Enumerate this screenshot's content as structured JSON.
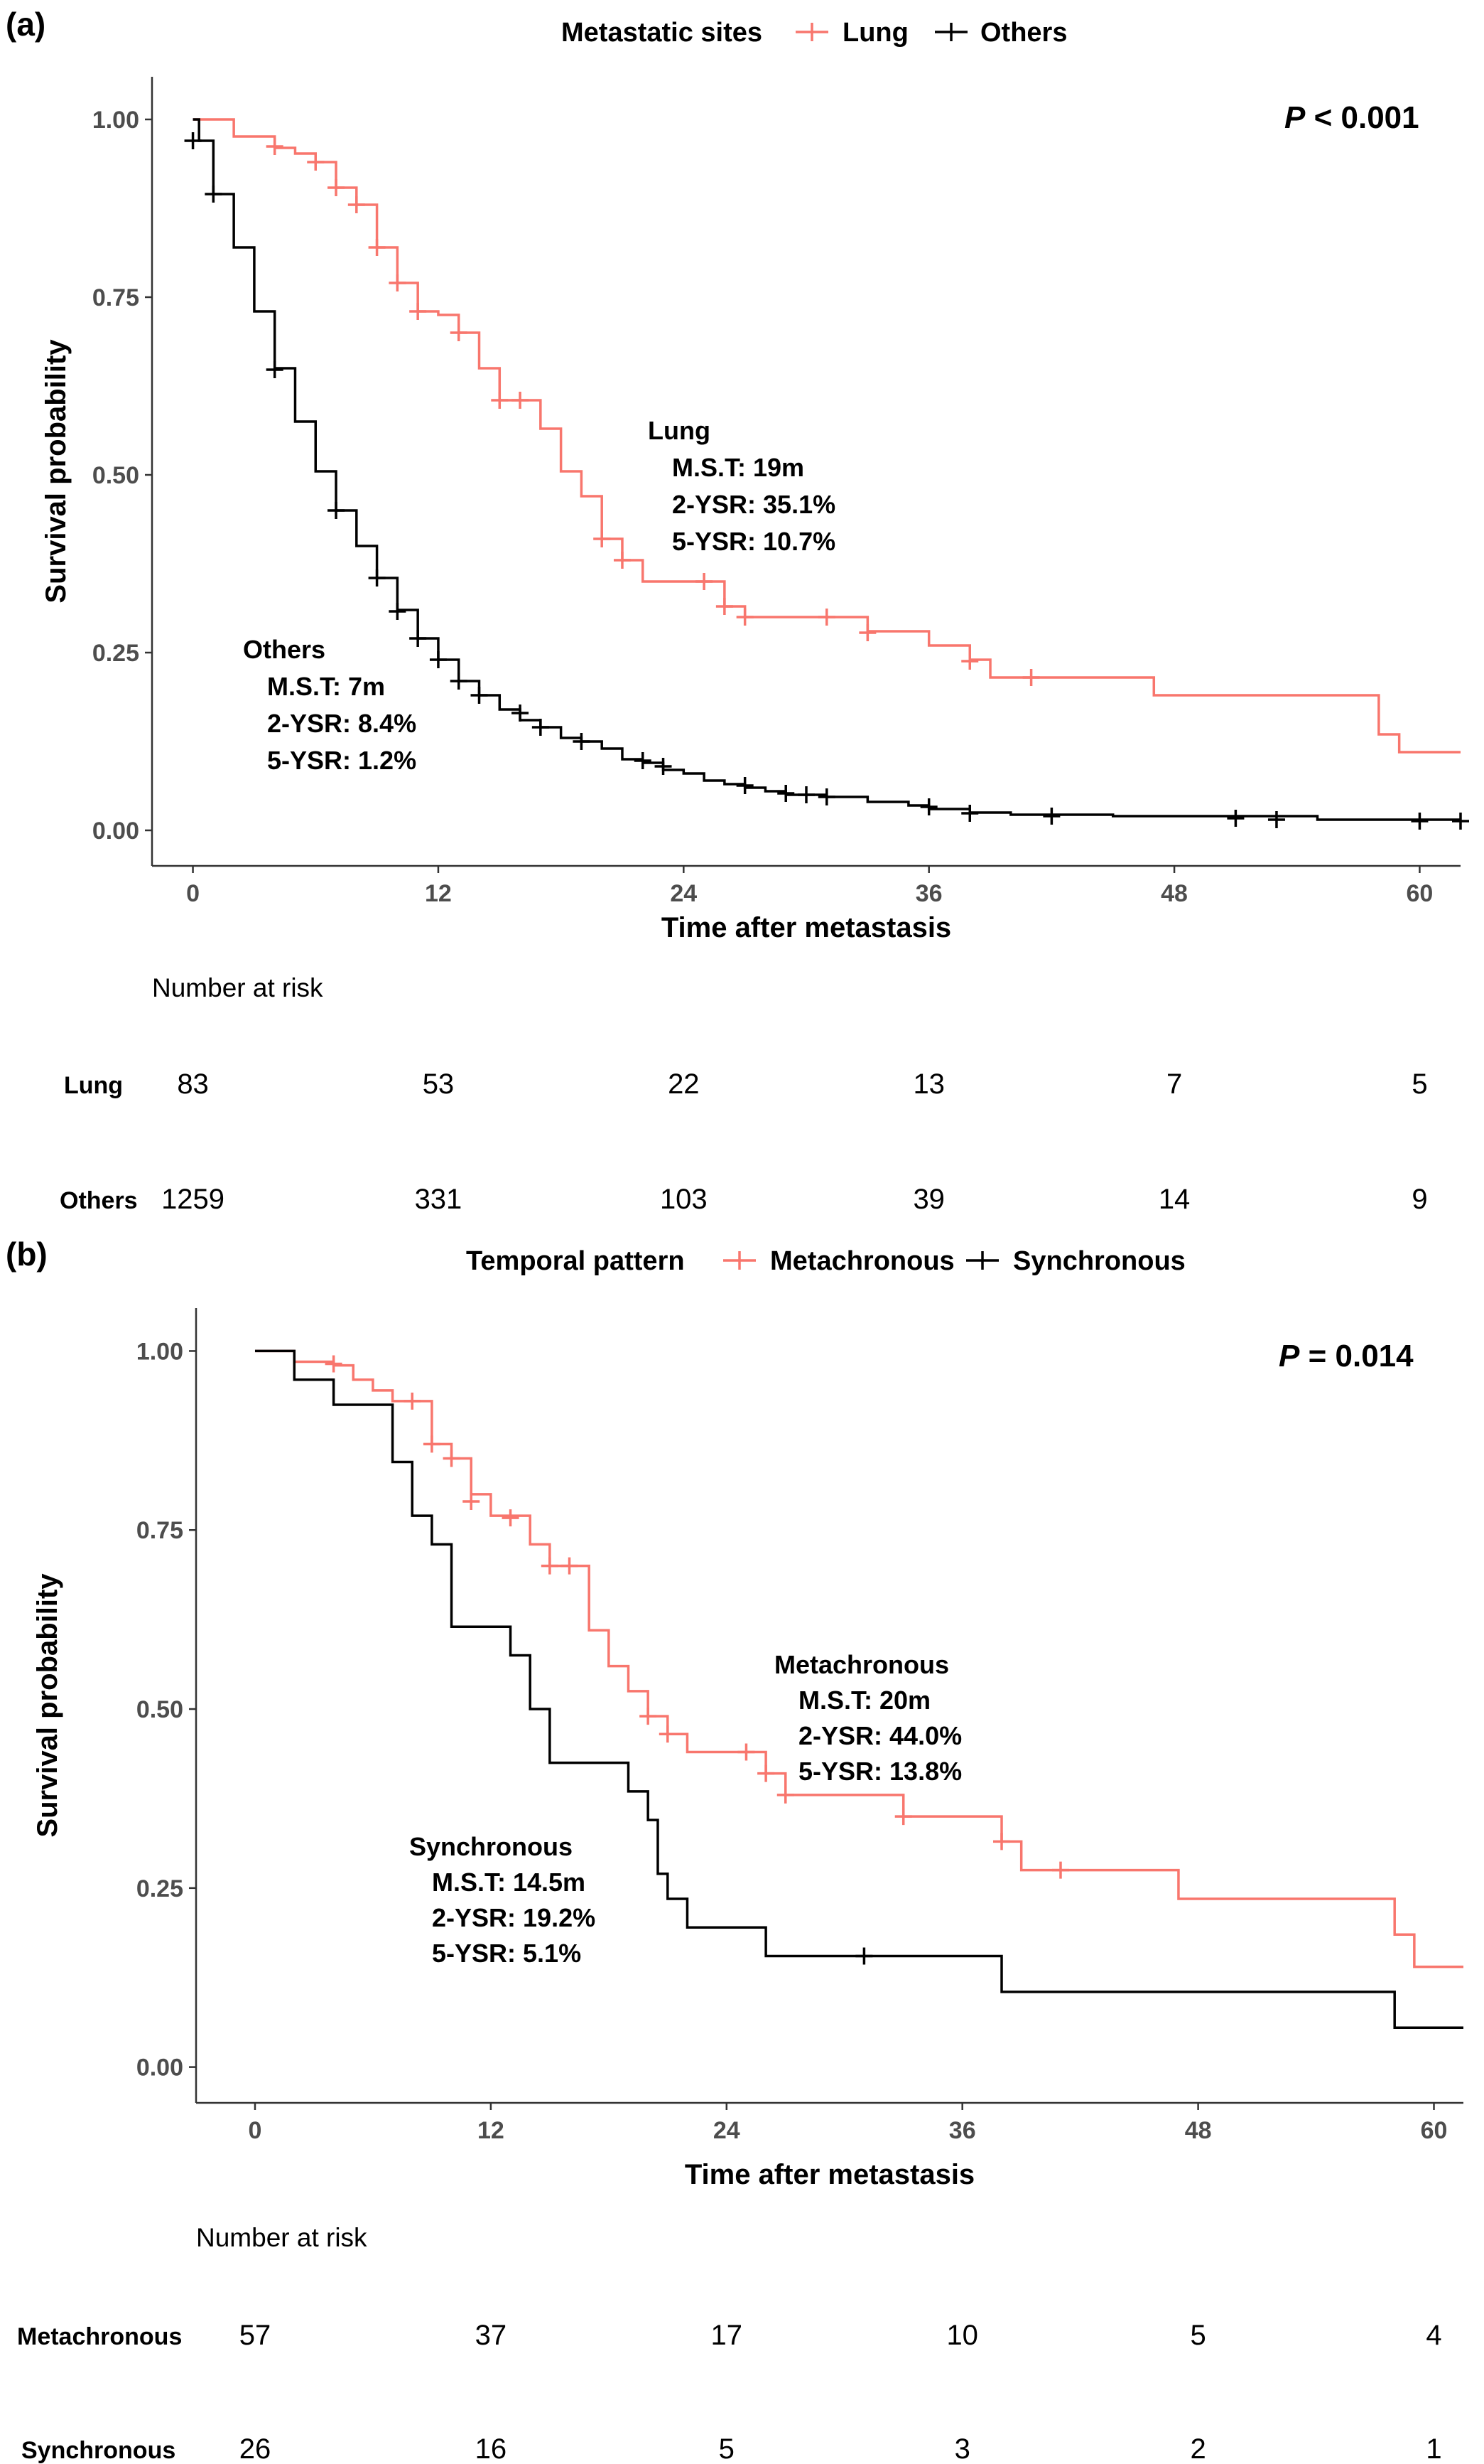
{
  "colors": {
    "lung": "#F8766D",
    "black": "#000000",
    "axis": "#333333",
    "tick_label": "#4D4D4D"
  },
  "chart_data": [
    {
      "type": "line",
      "panel_label": "(a)",
      "legend": {
        "title": "Metastatic sites",
        "entries": [
          "Lung",
          "Others"
        ],
        "placement": "top"
      },
      "p_value": {
        "prefix": "P",
        "rest": " < 0.001"
      },
      "xlabel": "Time after metastasis",
      "ylabel": "Survival probability",
      "xlim": [
        -2,
        62
      ],
      "ylim": [
        -0.05,
        1.06
      ],
      "x_ticks": [
        0,
        12,
        24,
        36,
        48,
        60
      ],
      "x_tick_labels": [
        "0",
        "12",
        "24",
        "36",
        "48",
        "60"
      ],
      "y_ticks": [
        0,
        0.25,
        0.5,
        0.75,
        1
      ],
      "y_tick_labels": [
        "0.00",
        "0.25",
        "0.50",
        "0.75",
        "1.00"
      ],
      "series": [
        {
          "name": "Lung",
          "color_key": "lung",
          "steps": [
            [
              0,
              1.0
            ],
            [
              2,
              0.976
            ],
            [
              4,
              0.96
            ],
            [
              5,
              0.952
            ],
            [
              6,
              0.94
            ],
            [
              7,
              0.904
            ],
            [
              8,
              0.88
            ],
            [
              9,
              0.82
            ],
            [
              10,
              0.77
            ],
            [
              11,
              0.73
            ],
            [
              12,
              0.725
            ],
            [
              13,
              0.7
            ],
            [
              14,
              0.65
            ],
            [
              15,
              0.605
            ],
            [
              16,
              0.605
            ],
            [
              17,
              0.565
            ],
            [
              18,
              0.505
            ],
            [
              19,
              0.47
            ],
            [
              20,
              0.41
            ],
            [
              21,
              0.38
            ],
            [
              22,
              0.35
            ],
            [
              25,
              0.35
            ],
            [
              26,
              0.315
            ],
            [
              27,
              0.3
            ],
            [
              31,
              0.3
            ],
            [
              33,
              0.28
            ],
            [
              36,
              0.26
            ],
            [
              38,
              0.24
            ],
            [
              39,
              0.215
            ],
            [
              47,
              0.19
            ],
            [
              58,
              0.135
            ],
            [
              59,
              0.11
            ],
            [
              62,
              0.11
            ]
          ],
          "censors": [
            [
              4,
              0.962
            ],
            [
              6,
              0.94
            ],
            [
              7,
              0.904
            ],
            [
              8,
              0.88
            ],
            [
              9,
              0.82
            ],
            [
              10,
              0.77
            ],
            [
              11,
              0.73
            ],
            [
              13,
              0.7
            ],
            [
              15,
              0.605
            ],
            [
              16,
              0.605
            ],
            [
              20,
              0.41
            ],
            [
              21,
              0.38
            ],
            [
              25,
              0.35
            ],
            [
              26,
              0.315
            ],
            [
              27,
              0.3
            ],
            [
              31,
              0.3
            ],
            [
              33,
              0.278
            ],
            [
              38,
              0.238
            ],
            [
              41,
              0.215
            ]
          ],
          "annotation": [
            "Lung",
            "M.S.T: 19m",
            "2-YSR: 35.1%",
            "5-YSR: 10.7%"
          ]
        },
        {
          "name": "Others",
          "color_key": "black",
          "steps": [
            [
              0,
              1.0
            ],
            [
              0.3,
              0.97
            ],
            [
              1,
              0.895
            ],
            [
              2,
              0.82
            ],
            [
              3,
              0.73
            ],
            [
              4,
              0.65
            ],
            [
              5,
              0.575
            ],
            [
              6,
              0.505
            ],
            [
              7,
              0.45
            ],
            [
              8,
              0.4
            ],
            [
              9,
              0.355
            ],
            [
              10,
              0.31
            ],
            [
              11,
              0.27
            ],
            [
              12,
              0.24
            ],
            [
              13,
              0.21
            ],
            [
              14,
              0.19
            ],
            [
              15,
              0.17
            ],
            [
              16,
              0.155
            ],
            [
              17,
              0.145
            ],
            [
              18,
              0.13
            ],
            [
              19,
              0.125
            ],
            [
              20,
              0.115
            ],
            [
              21,
              0.1
            ],
            [
              22,
              0.095
            ],
            [
              23,
              0.085
            ],
            [
              24,
              0.08
            ],
            [
              25,
              0.07
            ],
            [
              26,
              0.065
            ],
            [
              27,
              0.06
            ],
            [
              28,
              0.055
            ],
            [
              29,
              0.05
            ],
            [
              31,
              0.047
            ],
            [
              33,
              0.04
            ],
            [
              35,
              0.035
            ],
            [
              36,
              0.03
            ],
            [
              38,
              0.025
            ],
            [
              40,
              0.022
            ],
            [
              45,
              0.02
            ],
            [
              55,
              0.015
            ],
            [
              62,
              0.015
            ]
          ],
          "censors": [
            [
              0,
              0.97
            ],
            [
              1,
              0.895
            ],
            [
              4,
              0.648
            ],
            [
              7,
              0.45
            ],
            [
              9,
              0.355
            ],
            [
              10,
              0.308
            ],
            [
              11,
              0.27
            ],
            [
              12,
              0.24
            ],
            [
              13,
              0.21
            ],
            [
              14,
              0.19
            ],
            [
              16,
              0.165
            ],
            [
              17,
              0.145
            ],
            [
              19,
              0.125
            ],
            [
              22,
              0.098
            ],
            [
              23,
              0.09
            ],
            [
              27,
              0.063
            ],
            [
              29,
              0.052
            ],
            [
              30,
              0.05
            ],
            [
              31,
              0.047
            ],
            [
              36,
              0.033
            ],
            [
              38,
              0.024
            ],
            [
              42,
              0.02
            ],
            [
              51,
              0.017
            ],
            [
              53,
              0.015
            ],
            [
              60,
              0.013
            ],
            [
              62,
              0.013
            ]
          ],
          "annotation": [
            "Others",
            "M.S.T: 7m",
            "2-YSR: 8.4%",
            "5-YSR: 1.2%"
          ]
        }
      ],
      "risk_table": {
        "title": "Number at risk",
        "rows": [
          {
            "label": "Lung",
            "values": [
              "83",
              "53",
              "22",
              "13",
              "7",
              "5"
            ]
          },
          {
            "label": "Others",
            "values": [
              "1259",
              "331",
              "103",
              "39",
              "14",
              "9"
            ]
          }
        ]
      }
    },
    {
      "type": "line",
      "panel_label": "(b)",
      "legend": {
        "title": "Temporal pattern",
        "entries": [
          "Metachronous",
          "Synchronous"
        ],
        "placement": "top"
      },
      "p_value": {
        "prefix": "P",
        "rest": " = 0.014"
      },
      "xlabel": "Time after metastasis",
      "ylabel": "Survival probability",
      "xlim": [
        -3,
        61.5
      ],
      "ylim": [
        -0.05,
        1.06
      ],
      "x_ticks": [
        0,
        12,
        24,
        36,
        48,
        60
      ],
      "x_tick_labels": [
        "0",
        "12",
        "24",
        "36",
        "48",
        "60"
      ],
      "y_ticks": [
        0,
        0.25,
        0.5,
        0.75,
        1
      ],
      "y_tick_labels": [
        "0.00",
        "0.25",
        "0.50",
        "0.75",
        "1.00"
      ],
      "series": [
        {
          "name": "Metachronous",
          "color_key": "lung",
          "steps": [
            [
              0,
              1.0
            ],
            [
              2,
              0.985
            ],
            [
              4,
              0.98
            ],
            [
              5,
              0.96
            ],
            [
              6,
              0.945
            ],
            [
              7,
              0.93
            ],
            [
              9,
              0.87
            ],
            [
              10,
              0.85
            ],
            [
              11,
              0.8
            ],
            [
              12,
              0.77
            ],
            [
              14,
              0.73
            ],
            [
              15,
              0.7
            ],
            [
              17,
              0.61
            ],
            [
              18,
              0.56
            ],
            [
              19,
              0.525
            ],
            [
              20,
              0.49
            ],
            [
              21,
              0.465
            ],
            [
              22,
              0.44
            ],
            [
              26,
              0.41
            ],
            [
              27,
              0.38
            ],
            [
              33,
              0.35
            ],
            [
              38,
              0.315
            ],
            [
              39,
              0.275
            ],
            [
              47,
              0.235
            ],
            [
              58,
              0.185
            ],
            [
              59,
              0.14
            ],
            [
              61.5,
              0.14
            ]
          ],
          "censors": [
            [
              4,
              0.982
            ],
            [
              8,
              0.93
            ],
            [
              9,
              0.87
            ],
            [
              10,
              0.85
            ],
            [
              11,
              0.79
            ],
            [
              13,
              0.767
            ],
            [
              15,
              0.7
            ],
            [
              16,
              0.7
            ],
            [
              20,
              0.49
            ],
            [
              21,
              0.465
            ],
            [
              25,
              0.44
            ],
            [
              26,
              0.41
            ],
            [
              27,
              0.38
            ],
            [
              33,
              0.35
            ],
            [
              38,
              0.315
            ],
            [
              41,
              0.275
            ]
          ],
          "annotation": [
            "Metachronous",
            "M.S.T: 20m",
            "2-YSR: 44.0%",
            "5-YSR: 13.8%"
          ]
        },
        {
          "name": "Synchronous",
          "color_key": "black",
          "steps": [
            [
              0,
              1.0
            ],
            [
              2,
              0.96
            ],
            [
              4,
              0.925
            ],
            [
              7,
              0.845
            ],
            [
              8,
              0.77
            ],
            [
              9,
              0.73
            ],
            [
              10,
              0.615
            ],
            [
              13,
              0.575
            ],
            [
              14,
              0.5
            ],
            [
              15,
              0.425
            ],
            [
              19,
              0.385
            ],
            [
              20,
              0.345
            ],
            [
              20.5,
              0.27
            ],
            [
              21,
              0.235
            ],
            [
              22,
              0.195
            ],
            [
              26,
              0.155
            ],
            [
              38,
              0.105
            ],
            [
              58,
              0.055
            ],
            [
              61.5,
              0.055
            ]
          ],
          "censors": [
            [
              31,
              0.155
            ]
          ],
          "annotation": [
            "Synchronous",
            "M.S.T: 14.5m",
            "2-YSR: 19.2%",
            "5-YSR: 5.1%"
          ]
        }
      ],
      "risk_table": {
        "title": "Number at risk",
        "rows": [
          {
            "label": "Metachronous",
            "values": [
              "57",
              "37",
              "17",
              "10",
              "5",
              "4"
            ]
          },
          {
            "label": "Synchronous",
            "values": [
              "26",
              "16",
              "5",
              "3",
              "2",
              "1"
            ]
          }
        ]
      }
    }
  ]
}
